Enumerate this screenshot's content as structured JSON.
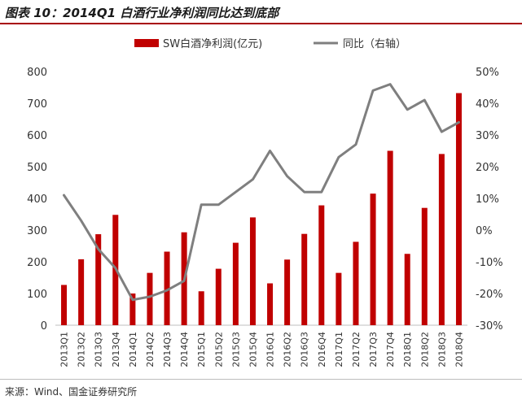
{
  "header": {
    "title": "图表 10：2014Q1 白酒行业净利润同比达到底部"
  },
  "footer": {
    "source": "来源：Wind、国金证券研究所"
  },
  "colors": {
    "bar": "#c00000",
    "line": "#7f7f7f",
    "accent": "#a8000a"
  },
  "chart_data": {
    "type": "bar",
    "title": "",
    "categories": [
      "2013Q1",
      "2013Q2",
      "2013Q3",
      "2013Q4",
      "2014Q1",
      "2014Q2",
      "2014Q3",
      "2014Q4",
      "2015Q1",
      "2015Q2",
      "2015Q3",
      "2015Q4",
      "2016Q1",
      "2016Q2",
      "2016Q3",
      "2016Q4",
      "2017Q1",
      "2017Q2",
      "2017Q3",
      "2017Q4",
      "2018Q1",
      "2018Q2",
      "2018Q3",
      "2018Q4"
    ],
    "series": [
      {
        "name": "SW白酒净利润(亿元)",
        "type": "bar",
        "axis": "left",
        "values": [
          127,
          208,
          287,
          348,
          100,
          165,
          232,
          293,
          107,
          178,
          260,
          340,
          132,
          207,
          288,
          378,
          165,
          263,
          415,
          550,
          225,
          370,
          540,
          732
        ]
      },
      {
        "name": "同比（右轴）",
        "type": "line",
        "axis": "right",
        "values": [
          11,
          3,
          -6,
          -12,
          -22,
          -21,
          -19,
          -16,
          8,
          8,
          12,
          16,
          25,
          17,
          12,
          12,
          23,
          27,
          44,
          46,
          38,
          41,
          31,
          34
        ]
      }
    ],
    "y_left": {
      "min": 0,
      "max": 800,
      "ticks": [
        0,
        100,
        200,
        300,
        400,
        500,
        600,
        700,
        800
      ]
    },
    "y_right": {
      "min": -30,
      "max": 50,
      "ticks": [
        "-30%",
        "-20%",
        "-10%",
        "0%",
        "10%",
        "20%",
        "30%",
        "40%",
        "50%"
      ]
    },
    "legend": {
      "position": "top"
    },
    "grid": false
  }
}
